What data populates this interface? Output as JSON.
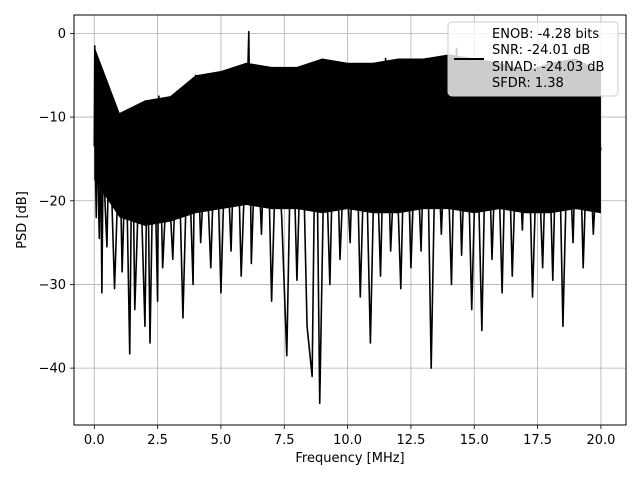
{
  "chart_data": {
    "type": "line",
    "title": "",
    "xlabel": "Frequency [MHz]",
    "ylabel": "PSD [dB]",
    "xlim": [
      -0.8,
      20.99
    ],
    "ylim": [
      -46.8,
      2.2
    ],
    "xticks": [
      0.0,
      2.5,
      5.0,
      7.5,
      10.0,
      12.5,
      15.0,
      17.5,
      20.0
    ],
    "xtick_labels": [
      "0.0",
      "2.5",
      "5.0",
      "7.5",
      "10.0",
      "12.5",
      "15.0",
      "17.5",
      "20.0"
    ],
    "yticks": [
      0,
      -10,
      -20,
      -30,
      -40
    ],
    "ytick_labels": [
      "0",
      "−10",
      "−20",
      "−30",
      "−40"
    ],
    "grid": true,
    "legend_position": "top-right",
    "series": [
      {
        "name": "ENOB: -4.28 bits",
        "color": "#000000",
        "points": [
          [
            0.0,
            -13.5
          ],
          [
            0.02,
            -1.5
          ],
          [
            0.05,
            -17.0
          ],
          [
            0.08,
            -22.0
          ],
          [
            0.1,
            -11.0
          ],
          [
            0.2,
            -24.5
          ],
          [
            0.25,
            -11.5
          ],
          [
            0.3,
            -31.0
          ],
          [
            0.35,
            -15.0
          ],
          [
            0.5,
            -25.5
          ],
          [
            0.6,
            -10.5
          ],
          [
            0.8,
            -30.5
          ],
          [
            1.0,
            -12.0
          ],
          [
            1.1,
            -28.5
          ],
          [
            1.25,
            -13.0
          ],
          [
            1.4,
            -38.3
          ],
          [
            1.5,
            -9.0
          ],
          [
            1.6,
            -33.0
          ],
          [
            1.8,
            -14.0
          ],
          [
            2.0,
            -35.0
          ],
          [
            2.1,
            -12.0
          ],
          [
            2.2,
            -37.0
          ],
          [
            2.35,
            -10.0
          ],
          [
            2.5,
            -32.0
          ],
          [
            2.55,
            -7.5
          ],
          [
            2.7,
            -28.0
          ],
          [
            2.9,
            -15.0
          ],
          [
            3.1,
            -27.0
          ],
          [
            3.3,
            -9.5
          ],
          [
            3.5,
            -34.0
          ],
          [
            3.7,
            -11.0
          ],
          [
            3.9,
            -30.0
          ],
          [
            4.0,
            -5.0
          ],
          [
            4.2,
            -25.0
          ],
          [
            4.4,
            -13.0
          ],
          [
            4.6,
            -28.0
          ],
          [
            4.8,
            -8.0
          ],
          [
            5.0,
            -31.0
          ],
          [
            5.2,
            -10.0
          ],
          [
            5.4,
            -26.0
          ],
          [
            5.6,
            -4.5
          ],
          [
            5.8,
            -29.0
          ],
          [
            6.0,
            -12.0
          ],
          [
            6.1,
            0.2
          ],
          [
            6.2,
            -27.5
          ],
          [
            6.4,
            -9.0
          ],
          [
            6.6,
            -24.0
          ],
          [
            6.8,
            -5.0
          ],
          [
            7.0,
            -32.0
          ],
          [
            7.2,
            -11.0
          ],
          [
            7.4,
            -22.0
          ],
          [
            7.6,
            -38.5
          ],
          [
            7.8,
            -6.0
          ],
          [
            8.0,
            -29.5
          ],
          [
            8.2,
            -8.0
          ],
          [
            8.4,
            -35.0
          ],
          [
            8.6,
            -41.0
          ],
          [
            8.75,
            -3.5
          ],
          [
            8.9,
            -44.2
          ],
          [
            9.1,
            -10.0
          ],
          [
            9.3,
            -30.0
          ],
          [
            9.5,
            -4.0
          ],
          [
            9.7,
            -27.0
          ],
          [
            9.9,
            -12.0
          ],
          [
            10.1,
            -25.0
          ],
          [
            10.3,
            -4.5
          ],
          [
            10.5,
            -31.5
          ],
          [
            10.7,
            -10.0
          ],
          [
            10.9,
            -37.0
          ],
          [
            11.1,
            -9.0
          ],
          [
            11.3,
            -29.0
          ],
          [
            11.5,
            -3.0
          ],
          [
            11.7,
            -26.0
          ],
          [
            11.9,
            -12.0
          ],
          [
            12.1,
            -30.5
          ],
          [
            12.3,
            -5.0
          ],
          [
            12.5,
            -28.0
          ],
          [
            12.7,
            -10.0
          ],
          [
            12.9,
            -26.0
          ],
          [
            13.1,
            -3.0
          ],
          [
            13.3,
            -40.0
          ],
          [
            13.5,
            -7.0
          ],
          [
            13.7,
            -24.0
          ],
          [
            13.9,
            -9.0
          ],
          [
            14.1,
            -30.0
          ],
          [
            14.3,
            -1.8
          ],
          [
            14.5,
            -26.5
          ],
          [
            14.7,
            -8.0
          ],
          [
            14.9,
            -33.0
          ],
          [
            15.1,
            -10.0
          ],
          [
            15.3,
            -35.5
          ],
          [
            15.5,
            -4.5
          ],
          [
            15.7,
            -27.0
          ],
          [
            15.9,
            -9.0
          ],
          [
            16.1,
            -31.0
          ],
          [
            16.3,
            -4.5
          ],
          [
            16.5,
            -29.0
          ],
          [
            16.7,
            -10.0
          ],
          [
            16.9,
            -23.5
          ],
          [
            17.1,
            -6.0
          ],
          [
            17.3,
            -31.5
          ],
          [
            17.5,
            -11.0
          ],
          [
            17.7,
            -28.0
          ],
          [
            17.9,
            -6.5
          ],
          [
            18.1,
            -29.5
          ],
          [
            18.3,
            -4.0
          ],
          [
            18.5,
            -35.0
          ],
          [
            18.7,
            -10.0
          ],
          [
            18.9,
            -25.0
          ],
          [
            19.1,
            -3.5
          ],
          [
            19.3,
            -28.0
          ],
          [
            19.5,
            -8.5
          ],
          [
            19.7,
            -24.0
          ],
          [
            19.9,
            -12.0
          ],
          [
            20.0,
            -14.0
          ]
        ],
        "band_top": [
          [
            0.0,
            -1.5
          ],
          [
            1.0,
            -9.5
          ],
          [
            2.0,
            -8.0
          ],
          [
            3.0,
            -7.5
          ],
          [
            4.0,
            -5.0
          ],
          [
            5.0,
            -4.5
          ],
          [
            6.0,
            -3.5
          ],
          [
            7.0,
            -4.0
          ],
          [
            8.0,
            -4.0
          ],
          [
            9.0,
            -3.0
          ],
          [
            10.0,
            -3.5
          ],
          [
            11.0,
            -3.5
          ],
          [
            12.0,
            -3.0
          ],
          [
            13.0,
            -3.0
          ],
          [
            14.0,
            -2.5
          ],
          [
            15.0,
            -3.0
          ],
          [
            16.0,
            -3.5
          ],
          [
            17.0,
            -4.5
          ],
          [
            18.0,
            -3.5
          ],
          [
            19.0,
            -3.0
          ],
          [
            20.0,
            -4.5
          ]
        ],
        "band_bottom": [
          [
            0.0,
            -17.5
          ],
          [
            1.0,
            -22.0
          ],
          [
            2.0,
            -23.0
          ],
          [
            3.0,
            -22.5
          ],
          [
            4.0,
            -21.5
          ],
          [
            5.0,
            -21.0
          ],
          [
            6.0,
            -20.5
          ],
          [
            7.0,
            -21.0
          ],
          [
            8.0,
            -21.0
          ],
          [
            9.0,
            -21.5
          ],
          [
            10.0,
            -21.0
          ],
          [
            11.0,
            -21.5
          ],
          [
            12.0,
            -21.5
          ],
          [
            13.0,
            -21.0
          ],
          [
            14.0,
            -21.0
          ],
          [
            15.0,
            -21.5
          ],
          [
            16.0,
            -21.0
          ],
          [
            17.0,
            -21.5
          ],
          [
            18.0,
            -21.5
          ],
          [
            19.0,
            -21.0
          ],
          [
            20.0,
            -21.5
          ]
        ]
      }
    ]
  },
  "legend": {
    "lines": [
      "ENOB: -4.28 bits",
      "SNR: -24.01 dB",
      "SINAD: -24.03 dB",
      "SFDR: 1.38"
    ]
  }
}
